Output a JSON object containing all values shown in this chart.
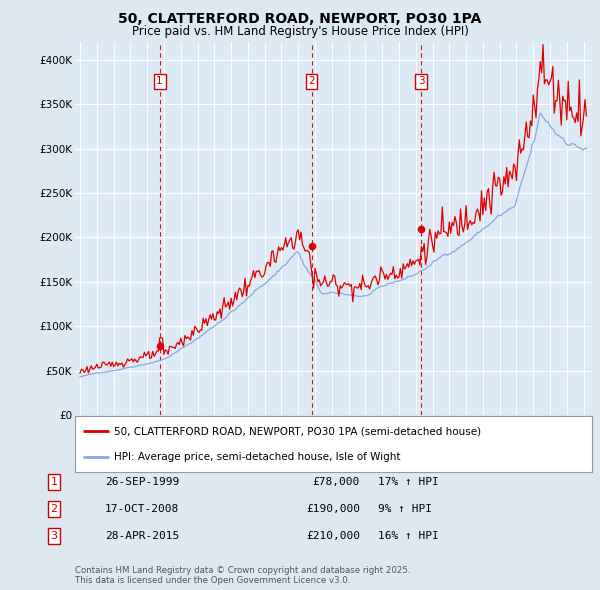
{
  "title": "50, CLATTERFORD ROAD, NEWPORT, PO30 1PA",
  "subtitle": "Price paid vs. HM Land Registry's House Price Index (HPI)",
  "background_color": "#dde8f0",
  "plot_bg_color": "#ddeaf5",
  "legend_line1": "50, CLATTERFORD ROAD, NEWPORT, PO30 1PA (semi-detached house)",
  "legend_line2": "HPI: Average price, semi-detached house, Isle of Wight",
  "footer": "Contains HM Land Registry data © Crown copyright and database right 2025.\nThis data is licensed under the Open Government Licence v3.0.",
  "transactions": [
    {
      "num": 1,
      "date": "26-SEP-1999",
      "price": 78000,
      "hpi_pct": "17% ↑ HPI",
      "x_year": 1999.74
    },
    {
      "num": 2,
      "date": "17-OCT-2008",
      "price": 190000,
      "hpi_pct": "9% ↑ HPI",
      "x_year": 2008.79
    },
    {
      "num": 3,
      "date": "28-APR-2015",
      "price": 210000,
      "hpi_pct": "16% ↑ HPI",
      "x_year": 2015.32
    }
  ],
  "ylim": [
    0,
    420000
  ],
  "xlim": [
    1994.7,
    2025.5
  ],
  "yticks": [
    0,
    50000,
    100000,
    150000,
    200000,
    250000,
    300000,
    350000,
    400000
  ],
  "ytick_labels": [
    "£0",
    "£50K",
    "£100K",
    "£150K",
    "£200K",
    "£250K",
    "£300K",
    "£350K",
    "£400K"
  ],
  "xticks": [
    1995,
    1996,
    1997,
    1998,
    1999,
    2000,
    2001,
    2002,
    2003,
    2004,
    2005,
    2006,
    2007,
    2008,
    2009,
    2010,
    2011,
    2012,
    2013,
    2014,
    2015,
    2016,
    2017,
    2018,
    2019,
    2020,
    2021,
    2022,
    2023,
    2024,
    2025
  ],
  "red_color": "#dd0000",
  "blue_color": "#88aadd",
  "vline_color": "#cc0000",
  "grid_color": "#ffffff",
  "marker_box_color": "#cc0000"
}
